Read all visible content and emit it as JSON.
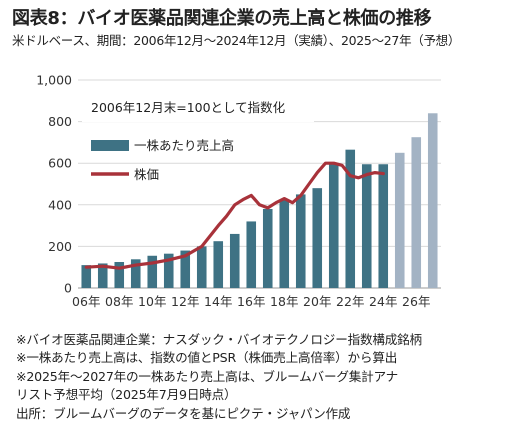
{
  "header": {
    "title": "図表8：バイオ医薬品関連企業の売上高と株価の推移",
    "subtitle": "米ドルベース、期間：2006年12月～2024年12月（実績）、2025～27年（予想）"
  },
  "chart_data": {
    "type": "bar",
    "annotation": "2006年12月末=100として指数化",
    "x": [
      2006,
      2007,
      2008,
      2009,
      2010,
      2011,
      2012,
      2013,
      2014,
      2015,
      2016,
      2017,
      2018,
      2019,
      2020,
      2021,
      2022,
      2023,
      2024,
      2025,
      2026,
      2027
    ],
    "xtick_labels": [
      "06年",
      "08年",
      "10年",
      "12年",
      "14年",
      "16年",
      "18年",
      "20年",
      "22年",
      "24年",
      "26年"
    ],
    "xtick_years": [
      2006,
      2008,
      2010,
      2012,
      2014,
      2016,
      2018,
      2020,
      2022,
      2024,
      2026
    ],
    "ylim": [
      0,
      1000
    ],
    "yticks": [
      0,
      200,
      400,
      600,
      800,
      1000
    ],
    "ytick_labels": [
      "0",
      "200",
      "400",
      "600",
      "800",
      "1,000"
    ],
    "grid": true,
    "legend_position": "top-left",
    "series": [
      {
        "name": "一株あたり売上高",
        "kind": "bar",
        "color": "#3e7284",
        "forecast_color": "#a3b3c4",
        "forecast_from": 2025,
        "values": [
          110,
          118,
          125,
          138,
          155,
          165,
          180,
          200,
          225,
          260,
          320,
          380,
          425,
          450,
          480,
          595,
          665,
          595,
          595,
          650,
          725,
          840
        ]
      },
      {
        "name": "株価",
        "kind": "line",
        "color": "#a8323a",
        "x": [
          2006,
          2007,
          2008,
          2009,
          2010,
          2011,
          2012,
          2013,
          2014,
          2014.5,
          2015,
          2015.5,
          2016,
          2016.5,
          2017,
          2017.5,
          2018,
          2018.5,
          2019,
          2019.5,
          2020,
          2020.5,
          2021,
          2021.5,
          2022,
          2022.5,
          2023,
          2023.5,
          2024
        ],
        "values": [
          100,
          105,
          95,
          110,
          120,
          135,
          155,
          200,
          300,
          345,
          400,
          425,
          445,
          400,
          385,
          410,
          430,
          410,
          445,
          500,
          555,
          600,
          600,
          590,
          540,
          530,
          545,
          555,
          550
        ]
      }
    ]
  },
  "notes": [
    "※バイオ医薬品関連企業：ナスダック・バイオテクノロジー指数構成銘柄",
    "※一株あたり売上高は、指数の値とPSR（株価売上高倍率）から算出",
    "※2025年～2027年の一株あたり売上高は、ブルームバーグ集計アナリスト予想平均（2025年7月9日時点）",
    "出所：ブルームバーグのデータを基にピクテ・ジャパン作成"
  ]
}
